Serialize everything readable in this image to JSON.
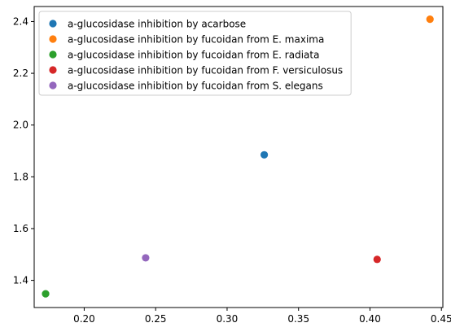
{
  "chart_data": {
    "type": "scatter",
    "title": "",
    "xlabel": "",
    "ylabel": "",
    "xlim": [
      0.165,
      0.451
    ],
    "ylim": [
      1.295,
      2.458
    ],
    "xticks": [
      0.2,
      0.25,
      0.3,
      0.35,
      0.4,
      0.45
    ],
    "xtick_labels": [
      "0.20",
      "0.25",
      "0.30",
      "0.35",
      "0.40",
      "0.45"
    ],
    "yticks": [
      1.4,
      1.6,
      1.8,
      2.0,
      2.2,
      2.4
    ],
    "ytick_labels": [
      "1.4",
      "1.6",
      "1.8",
      "2.0",
      "2.2",
      "2.4"
    ],
    "grid": false,
    "legend_position": "top-left",
    "series": [
      {
        "name": "a-glucosidase inhibition by acarbose",
        "color": "#1f77b4",
        "x": [
          0.326
        ],
        "y": [
          1.885
        ]
      },
      {
        "name": "a-glucosidase inhibition by fucoidan from E. maxima",
        "color": "#ff7f0e",
        "x": [
          0.442
        ],
        "y": [
          2.409
        ]
      },
      {
        "name": "a-glucosidase inhibition by fucoidan from E. radiata",
        "color": "#2ca02c",
        "x": [
          0.173
        ],
        "y": [
          1.348
        ]
      },
      {
        "name": "a-glucosidase inhibition by fucoidan from F. versiculosus",
        "color": "#d62728",
        "x": [
          0.405
        ],
        "y": [
          1.481
        ]
      },
      {
        "name": "a-glucosidase inhibition by fucoidan from S. elegans",
        "color": "#9467bd",
        "x": [
          0.243
        ],
        "y": [
          1.487
        ]
      }
    ]
  }
}
